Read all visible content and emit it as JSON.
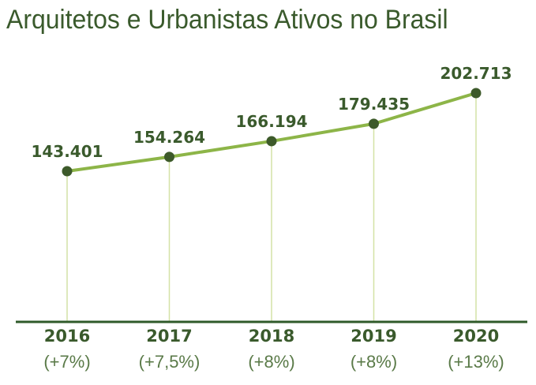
{
  "chart_data": {
    "type": "line",
    "title": "Arquitetos e Urbanistas Ativos no Brasil",
    "categories": [
      "2016",
      "2017",
      "2018",
      "2019",
      "2020"
    ],
    "growth_labels": [
      "(+7%)",
      "(+7,5%)",
      "(+8%)",
      "(+8%)",
      "(+13%)"
    ],
    "values": [
      143401,
      154264,
      166194,
      179435,
      202713
    ],
    "value_labels": [
      "143.401",
      "154.264",
      "166.194",
      "179.435",
      "202.713"
    ],
    "grid": false,
    "colors": {
      "line": "#8db548",
      "point": "#3d5a2a",
      "drop_line": "#d4e2a6",
      "axis": "#2f5a2a",
      "text": "#3a5a2c"
    }
  }
}
